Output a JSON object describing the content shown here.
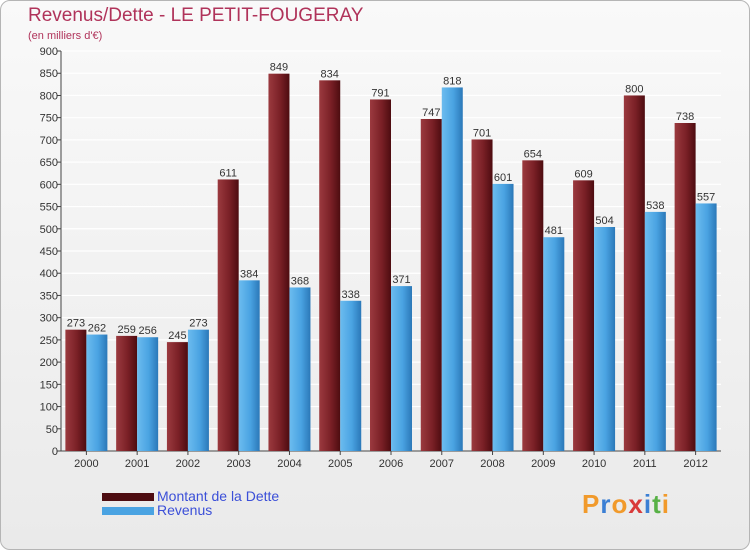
{
  "colors": {
    "debt": "#7a2026",
    "debt_light": "#9b3a3f",
    "debt_dark": "#4d0c10",
    "revenue": "#4aa3e2",
    "revenue_light": "#6cbcef",
    "revenue_dark": "#2b78b8",
    "title": "#b0335a",
    "legend_text": "#3b4fd8"
  },
  "chart_data": {
    "type": "bar",
    "title": "Revenus/Dette - LE PETIT-FOUGERAY",
    "subtitle": "(en milliers d'€)",
    "xlabel": "",
    "ylabel": "",
    "ylim": [
      0,
      900
    ],
    "yticks": [
      0,
      50,
      100,
      150,
      200,
      250,
      300,
      350,
      400,
      450,
      500,
      550,
      600,
      650,
      700,
      750,
      800,
      850,
      900
    ],
    "grid": true,
    "legend_position": "bottom-left",
    "categories": [
      "2000",
      "2001",
      "2002",
      "2003",
      "2004",
      "2005",
      "2006",
      "2007",
      "2008",
      "2009",
      "2010",
      "2011",
      "2012"
    ],
    "series": [
      {
        "name": "Montant de la Dette",
        "values": [
          273,
          259,
          245,
          611,
          849,
          834,
          791,
          747,
          701,
          654,
          609,
          800,
          738
        ]
      },
      {
        "name": "Revenus",
        "values": [
          262,
          256,
          273,
          384,
          368,
          338,
          371,
          818,
          601,
          481,
          504,
          538,
          557
        ]
      }
    ]
  },
  "logo": {
    "letters": [
      "P",
      "r",
      "o",
      "x",
      "i",
      "t",
      "i"
    ],
    "colors": [
      "#f19a2b",
      "#3b7fd4",
      "#f19a2b",
      "#d93a3a",
      "#3b7fd4",
      "#58b146",
      "#f19a2b"
    ]
  }
}
